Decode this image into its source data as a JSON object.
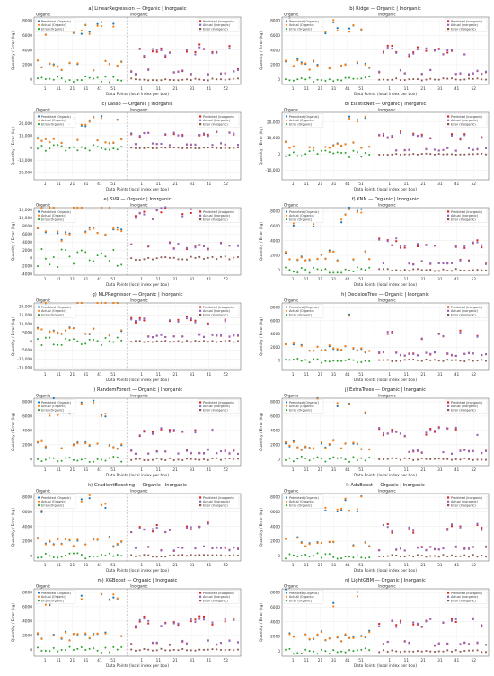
{
  "figure": {
    "panels": [
      {
        "title": "a) LinearRegression — Organic | Inorganic"
      },
      {
        "title": "b) Ridge — Organic | Inorganic"
      },
      {
        "title": "c) Lasso — Organic | Inorganic"
      },
      {
        "title": "d) ElasticNet — Organic | Inorganic"
      },
      {
        "title": "e) SVR — Organic | Inorganic"
      },
      {
        "title": "f) KNN — Organic | Inorganic"
      },
      {
        "title": "g) MLPRegressor — Organic | Inorganic"
      },
      {
        "title": "h) DecisionTree — Organic | Inorganic"
      },
      {
        "title": "i) RandomForest — Organic | Inorganic"
      },
      {
        "title": "j) ExtraTrees — Organic | Inorganic"
      },
      {
        "title": "k) GradientBoosting — Organic | Inorganic"
      },
      {
        "title": "l) AdaBoost — Organic | Inorganic"
      },
      {
        "title": "m) XGBoost — Organic | Inorganic"
      },
      {
        "title": "n) LightGBM — Organic | Inorganic"
      }
    ],
    "section_labels": {
      "left": "Organic",
      "right": "Inorganic"
    },
    "legend_left": [
      "Predicted (Organic)",
      "Actual (Organic)",
      "Error (Organic)"
    ],
    "legend_right": [
      "Predicted (Inorganic)",
      "Actual (Inorganic)",
      "Error (Inorganic)"
    ],
    "colors": {
      "predicted_organic": "#1f77b4",
      "actual_organic": "#ff7f0e",
      "error_organic": "#2ca02c",
      "predicted_inorganic": "#d62728",
      "actual_inorganic": "#9467bd",
      "error_inorganic": "#8c564b"
    }
  },
  "chart_data": [
    {
      "type": "scatter",
      "title": "a) LinearRegression — Organic | Inorganic",
      "xlabel": "Data Points (local index per box)",
      "ylabel": "Quantity / Error (kg)",
      "xticks": [
        "1",
        "11",
        "21",
        "31",
        "41",
        "51",
        "1",
        "11",
        "21",
        "31",
        "41",
        "52"
      ],
      "yticks": [
        0,
        2000,
        4000,
        6000,
        8000
      ],
      "ylim": [
        -700,
        8500
      ],
      "grid": true,
      "legend": "top-left and top-right"
    },
    {
      "type": "scatter",
      "title": "b) Ridge — Organic | Inorganic",
      "xlabel": "Data Points (local index per box)",
      "ylabel": "Quantity / Error (kg)",
      "xticks": [
        "1",
        "11",
        "21",
        "31",
        "41",
        "51",
        "1",
        "11",
        "21",
        "31",
        "41",
        "52"
      ],
      "yticks": [
        0,
        2000,
        4000,
        6000,
        8000
      ],
      "ylim": [
        -700,
        8500
      ],
      "grid": true,
      "legend": "top-left and top-right"
    },
    {
      "type": "scatter",
      "title": "c) Lasso — Organic | Inorganic",
      "xlabel": "Data Points (local index per box)",
      "ylabel": "Quantity / Error (kg)",
      "xticks": [
        "1",
        "11",
        "21",
        "31",
        "41",
        "51",
        "1",
        "11",
        "21",
        "31",
        "41",
        "52"
      ],
      "yticks": [
        -20000,
        -10000,
        0,
        10000,
        20000
      ],
      "ytick_labels": [
        "-20,000",
        "-10,000",
        "0",
        "10,000",
        "20,000"
      ],
      "ylim": [
        -26000,
        29000
      ],
      "grid": true,
      "legend": "top-left and top-right"
    },
    {
      "type": "scatter",
      "title": "d) ElasticNet — Organic | Inorganic",
      "xlabel": "Data Points (local index per box)",
      "ylabel": "Quantity / Error (kg)",
      "xticks": [
        "1",
        "11",
        "21",
        "31",
        "41",
        "51",
        "1",
        "11",
        "21",
        "31",
        "41",
        "52"
      ],
      "yticks": [
        -10000,
        0,
        10000,
        20000
      ],
      "ytick_labels": [
        "-10,000",
        "0",
        "10,000",
        "20,000"
      ],
      "ylim": [
        -16000,
        26000
      ],
      "grid": true,
      "legend": "top-left and top-right"
    },
    {
      "type": "scatter",
      "title": "e) SVR — Organic | Inorganic",
      "xlabel": "Data Points (local index per box)",
      "ylabel": "Quantity / Error (kg)",
      "xticks": [
        "1",
        "11",
        "21",
        "31",
        "41",
        "51",
        "1",
        "11",
        "21",
        "31",
        "41",
        "52"
      ],
      "yticks": [
        -4000,
        -2000,
        0,
        2000,
        4000,
        6000,
        8000,
        10000,
        12000
      ],
      "ytick_labels": [
        "-4000",
        "-2000",
        "0",
        "2000",
        "4000",
        "6000",
        "8000",
        "10,000",
        "12,000"
      ],
      "ylim": [
        -4200,
        12500
      ],
      "grid": true,
      "legend": "top-left and top-right"
    },
    {
      "type": "scatter",
      "title": "f) KNN — Organic | Inorganic",
      "xlabel": "Data Points (local index per box)",
      "ylabel": "Quantity / Error (kg)",
      "xticks": [
        "1",
        "11",
        "21",
        "31",
        "41",
        "51",
        "1",
        "11",
        "21",
        "31",
        "41",
        "52"
      ],
      "yticks": [
        0,
        2000,
        4000,
        6000,
        8000
      ],
      "ylim": [
        -700,
        8500
      ],
      "grid": true,
      "legend": "top-left and top-right"
    },
    {
      "type": "scatter",
      "title": "g) MLPRegressor — Organic | Inorganic",
      "xlabel": "Data Points (local index per box)",
      "ylabel": "Quantity / Error (kg)",
      "xticks": [
        "1",
        "11",
        "21",
        "31",
        "41",
        "51",
        "1",
        "11",
        "21",
        "31",
        "41",
        "52"
      ],
      "yticks": [
        -15000,
        -10000,
        -5000,
        0,
        5000,
        10000,
        15000,
        20000
      ],
      "ytick_labels": [
        "-15,000",
        "-10,000",
        "-5000",
        "0",
        "5000",
        "10,000",
        "15,000",
        "20,000"
      ],
      "ylim": [
        -16500,
        22000
      ],
      "grid": true,
      "legend": "top-left and top-right"
    },
    {
      "type": "scatter",
      "title": "h) DecisionTree — Organic | Inorganic",
      "xlabel": "Data Points (local index per box)",
      "ylabel": "Quantity / Error (kg)",
      "xticks": [
        "1",
        "11",
        "21",
        "31",
        "41",
        "51",
        "1",
        "11",
        "21",
        "31",
        "41",
        "52"
      ],
      "yticks": [
        0,
        2000,
        4000,
        6000,
        8000
      ],
      "ylim": [
        -1500,
        8700
      ],
      "grid": true,
      "legend": "top-left and top-right"
    },
    {
      "type": "scatter",
      "title": "i) RandomForest — Organic | Inorganic",
      "xlabel": "Data Points (local index per box)",
      "ylabel": "Quantity / Error (kg)",
      "xticks": [
        "1",
        "11",
        "21",
        "31",
        "41",
        "51",
        "1",
        "11",
        "21",
        "31",
        "41",
        "52"
      ],
      "yticks": [
        0,
        2000,
        4000,
        6000,
        8000
      ],
      "ylim": [
        -900,
        8500
      ],
      "grid": true,
      "legend": "top-left and top-right"
    },
    {
      "type": "scatter",
      "title": "j) ExtraTrees — Organic | Inorganic",
      "xlabel": "Data Points (local index per box)",
      "ylabel": "Quantity / Error (kg)",
      "xticks": [
        "1",
        "11",
        "21",
        "31",
        "41",
        "51",
        "1",
        "11",
        "21",
        "31",
        "41",
        "52"
      ],
      "yticks": [
        0,
        2000,
        4000,
        6000,
        8000
      ],
      "ylim": [
        -900,
        8500
      ],
      "grid": true,
      "legend": "top-left and top-right"
    },
    {
      "type": "scatter",
      "title": "k) GradientBoosting — Organic | Inorganic",
      "xlabel": "Data Points (local index per box)",
      "ylabel": "Quantity / Error (kg)",
      "xticks": [
        "1",
        "11",
        "21",
        "31",
        "41",
        "51",
        "1",
        "11",
        "21",
        "31",
        "41",
        "52"
      ],
      "yticks": [
        0,
        2000,
        4000,
        6000,
        8000
      ],
      "ylim": [
        -700,
        8500
      ],
      "grid": true,
      "legend": "top-left and top-right"
    },
    {
      "type": "scatter",
      "title": "l) AdaBoost — Organic | Inorganic",
      "xlabel": "Data Points (local index per box)",
      "ylabel": "Quantity / Error (kg)",
      "xticks": [
        "1",
        "11",
        "21",
        "31",
        "41",
        "51",
        "1",
        "11",
        "21",
        "31",
        "41",
        "52"
      ],
      "yticks": [
        0,
        2000,
        4000,
        6000,
        8000
      ],
      "ylim": [
        -700,
        8500
      ],
      "grid": true,
      "legend": "top-left and top-right"
    },
    {
      "type": "scatter",
      "title": "m) XGBoost — Organic | Inorganic",
      "xlabel": "Data Points (local index per box)",
      "ylabel": "Quantity / Error (kg)",
      "xticks": [
        "1",
        "11",
        "21",
        "31",
        "41",
        "51",
        "1",
        "11",
        "21",
        "31",
        "41",
        "52"
      ],
      "yticks": [
        0,
        2000,
        4000,
        6000,
        8000
      ],
      "ylim": [
        -900,
        8500
      ],
      "grid": true,
      "legend": "top-left and top-right"
    },
    {
      "type": "scatter",
      "title": "n) LightGBM — Organic | Inorganic",
      "xlabel": "Data Points (local index per box)",
      "ylabel": "Quantity / Error (kg)",
      "xticks": [
        "1",
        "11",
        "21",
        "31",
        "41",
        "51",
        "1",
        "11",
        "21",
        "31",
        "41",
        "52"
      ],
      "yticks": [
        0,
        2000,
        4000,
        6000,
        8000
      ],
      "ylim": [
        -700,
        8500
      ],
      "grid": true,
      "legend": "top-left and top-right"
    }
  ]
}
